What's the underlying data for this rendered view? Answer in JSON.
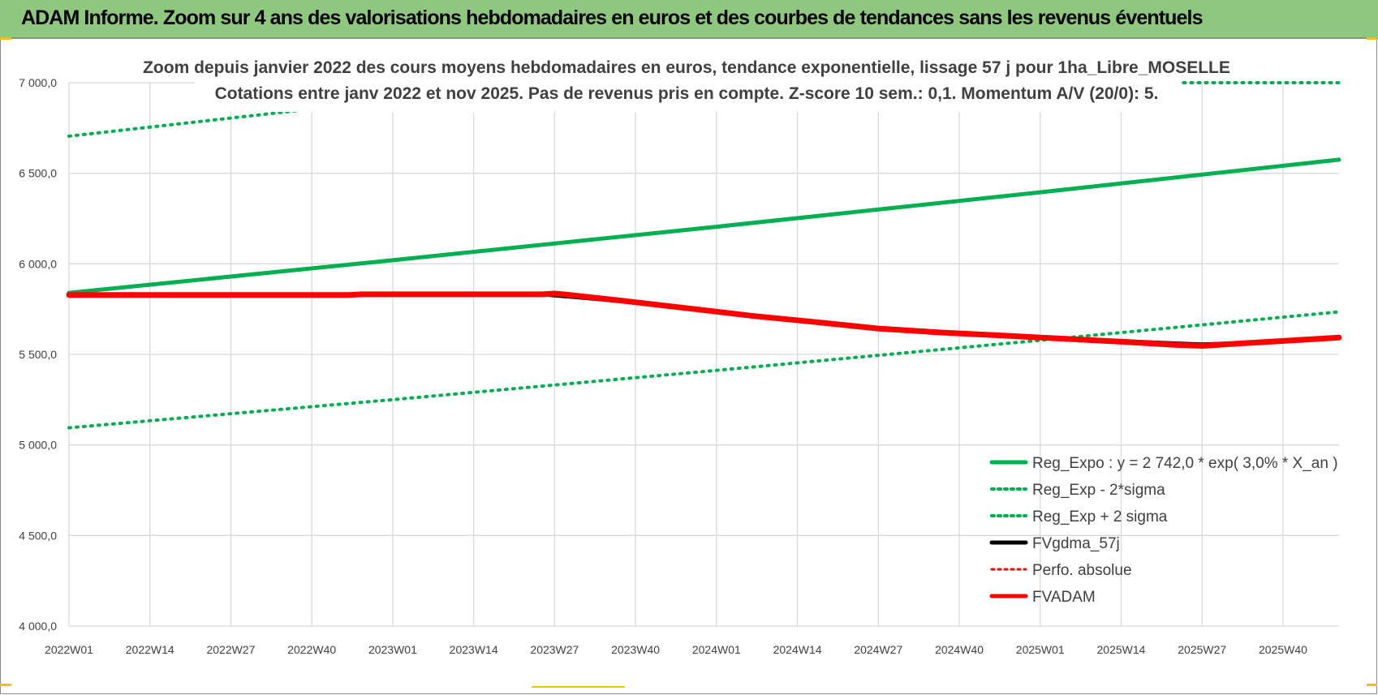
{
  "banner": {
    "title": "ADAM Informe. Zoom sur 4 ans des valorisations hebdomadaires en euros et des courbes de tendances sans les revenus éventuels"
  },
  "chart_data": {
    "type": "line",
    "title": "Zoom depuis janvier 2022 des cours moyens hebdomadaires en euros, tendance exponentielle, lissage 57 j pour 1ha_Libre_MOSELLE",
    "subtitle": "Cotations entre janv 2022 et nov 2025. Pas de revenus pris en compte. Z-score 10 sem.: 0,1. Momentum A/V (20/0): 5.",
    "xlabel": "",
    "ylabel": "",
    "ylim": [
      4000,
      7000
    ],
    "yticks": [
      4000,
      4500,
      5000,
      5500,
      6000,
      6500,
      7000
    ],
    "ytick_labels": [
      "4 000,0",
      "4 500,0",
      "5 000,0",
      "5 500,0",
      "6 000,0",
      "6 500,0",
      "7 000,0"
    ],
    "x_tick_labels": [
      "2022W01",
      "2022W14",
      "2022W27",
      "2022W40",
      "2023W01",
      "2023W14",
      "2023W27",
      "2023W40",
      "2024W01",
      "2024W14",
      "2024W27",
      "2024W40",
      "2025W01",
      "2025W14",
      "2025W27",
      "2025W40"
    ],
    "x_tick_index": [
      0,
      13,
      26,
      39,
      52,
      65,
      78,
      91,
      104,
      117,
      130,
      143,
      156,
      169,
      182,
      195
    ],
    "x_max_index": 204,
    "grid": true,
    "legend_position": "bottom-right",
    "series": [
      {
        "name": "Reg_Expo : y = 2 742,0 * exp( 3,0% *  X_an )",
        "color": "#00b050",
        "style": "solid",
        "width": 5,
        "points": [
          [
            0,
            5840
          ],
          [
            52,
            6020
          ],
          [
            104,
            6205
          ],
          [
            156,
            6395
          ],
          [
            204,
            6575
          ]
        ]
      },
      {
        "name": "Reg_Exp - 2*sigma",
        "color": "#00b050",
        "style": "dotted",
        "width": 4,
        "points": [
          [
            0,
            5095
          ],
          [
            52,
            5250
          ],
          [
            104,
            5412
          ],
          [
            156,
            5578
          ],
          [
            204,
            5735
          ]
        ]
      },
      {
        "name": "Reg_Exp + 2 sigma",
        "color": "#00b050",
        "style": "dotted",
        "width": 4,
        "points": [
          [
            0,
            6705
          ],
          [
            39,
            6855
          ]
        ],
        "points_extra": [
          [
            172,
            7000
          ],
          [
            204,
            7000
          ]
        ]
      },
      {
        "name": "FVgdma_57j",
        "color": "#000000",
        "style": "solid",
        "width": 5,
        "points": [
          [
            0,
            5828
          ],
          [
            45,
            5828
          ],
          [
            47,
            5832
          ],
          [
            76,
            5832
          ],
          [
            78,
            5826
          ],
          [
            82,
            5815
          ],
          [
            90,
            5790
          ],
          [
            100,
            5750
          ],
          [
            110,
            5710
          ],
          [
            120,
            5675
          ],
          [
            130,
            5640
          ],
          [
            140,
            5620
          ],
          [
            150,
            5605
          ],
          [
            160,
            5588
          ],
          [
            170,
            5572
          ],
          [
            178,
            5560
          ],
          [
            182,
            5555
          ],
          [
            186,
            5560
          ],
          [
            194,
            5572
          ],
          [
            204,
            5593
          ]
        ]
      },
      {
        "name": "Perfo. absolue",
        "color": "#ff0000",
        "style": "dotted",
        "width": 3,
        "points": []
      },
      {
        "name": "FVADAM",
        "color": "#ff0000",
        "style": "solid",
        "width": 7,
        "points": [
          [
            0,
            5828
          ],
          [
            45,
            5828
          ],
          [
            47,
            5832
          ],
          [
            76,
            5832
          ],
          [
            78,
            5836
          ],
          [
            80,
            5830
          ],
          [
            84,
            5815
          ],
          [
            90,
            5792
          ],
          [
            100,
            5752
          ],
          [
            110,
            5712
          ],
          [
            120,
            5678
          ],
          [
            130,
            5643
          ],
          [
            140,
            5621
          ],
          [
            150,
            5604
          ],
          [
            160,
            5586
          ],
          [
            170,
            5568
          ],
          [
            178,
            5552
          ],
          [
            182,
            5547
          ],
          [
            186,
            5556
          ],
          [
            194,
            5572
          ],
          [
            204,
            5593
          ]
        ]
      }
    ],
    "colors": {
      "grid": "#d9d9d9",
      "axis_text": "#404040",
      "banner": "#8dc87e",
      "accent_corner": "#f2c014"
    }
  }
}
